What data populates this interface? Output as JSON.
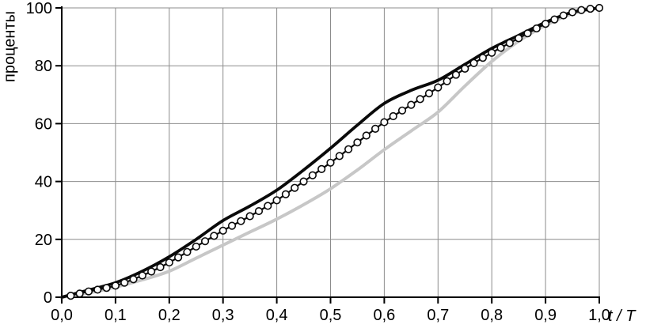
{
  "chart_data": {
    "type": "line",
    "title": "",
    "ylabel": "проценты",
    "xlabel": "t / T",
    "ylim": [
      0,
      100
    ],
    "xlim": [
      0,
      1.0
    ],
    "grid": true,
    "legend": "none",
    "x_tick_values": [
      0,
      0.1,
      0.2,
      0.3,
      0.4,
      0.5,
      0.6,
      0.7,
      0.8,
      0.9,
      1.0
    ],
    "x_tick_labels": [
      "0,0",
      "0,1",
      "0,2",
      "0,3",
      "0,4",
      "0,5",
      "0,6",
      "0,7",
      "0,8",
      "0,9",
      "1,0"
    ],
    "y_tick_values": [
      0,
      20,
      40,
      60,
      80,
      100
    ],
    "y_tick_labels": [
      "0",
      "20",
      "40",
      "60",
      "80",
      "100"
    ],
    "x": [
      0,
      0.05,
      0.1,
      0.15,
      0.2,
      0.25,
      0.3,
      0.35,
      0.4,
      0.45,
      0.5,
      0.55,
      0.6,
      0.65,
      0.7,
      0.75,
      0.8,
      0.85,
      0.9,
      0.95,
      1.0
    ],
    "series": [
      {
        "name": "gray-smooth-curve",
        "color": "#c7c7c7",
        "line_width": 4,
        "marker": "none",
        "values": [
          0,
          1.5,
          3.5,
          6,
          9,
          13.5,
          18,
          22.5,
          27,
          32,
          37.5,
          44,
          51,
          57.5,
          64,
          73,
          81.5,
          88.5,
          94,
          98,
          100
        ]
      },
      {
        "name": "thick-black-curve",
        "color": "#0a0a0a",
        "line_width": 3.8,
        "marker": "none",
        "values": [
          0,
          2.5,
          5,
          9,
          14,
          20,
          26.5,
          31.5,
          37,
          44,
          51.5,
          59.5,
          67,
          71.5,
          75,
          80.5,
          86,
          90.5,
          95,
          98.5,
          100
        ]
      },
      {
        "name": "circle-marker-curve",
        "color": "#0a0a0a",
        "line_width": 2.2,
        "marker": "circle",
        "marker_radius": 4.3,
        "marker_fill": "#fdfdfd",
        "marker_interval": 0.01667,
        "values": [
          0,
          2,
          4,
          7.5,
          12,
          17.5,
          23,
          28,
          33.5,
          40,
          46.5,
          53.5,
          60.5,
          66.5,
          72.5,
          79,
          84.5,
          89.5,
          94.5,
          98.5,
          100
        ]
      }
    ],
    "colors": {
      "axis": "#000000",
      "gridline": "#8c8c8c",
      "background": "#ffffff"
    }
  }
}
